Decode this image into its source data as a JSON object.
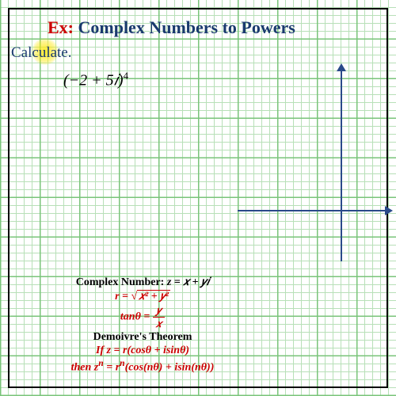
{
  "title": {
    "prefix": "Ex:",
    "main": "  Complex Numbers to Powers"
  },
  "instruction": "Calculate.",
  "expression": {
    "base": "(−2 + 5𝑖)",
    "power": "4"
  },
  "formulas": {
    "heading1_pre": "Complex Number: ",
    "heading1_eq": "z = 𝑥 + 𝑦𝑖",
    "r_lhs": "r = ",
    "r_sqrt": "√",
    "r_rad": "𝑥² + 𝑦²",
    "tan_lhs": "tanθ = ",
    "tan_num": "𝑦",
    "tan_den": "𝑥",
    "heading2": "Demoivre's Theorem",
    "if_line": "If z = r(cosθ + isinθ)",
    "then_pre": "then z",
    "then_sup1": "n",
    "then_mid": " = r",
    "then_sup2": "n",
    "then_rest": "(cos(nθ) + isin(nθ))"
  },
  "colors": {
    "red": "#cc0000",
    "blue": "#1a3a6e",
    "axis": "#2a4a8a",
    "grid_minor": "#b8e0b8",
    "grid_major": "#7ac47a"
  }
}
